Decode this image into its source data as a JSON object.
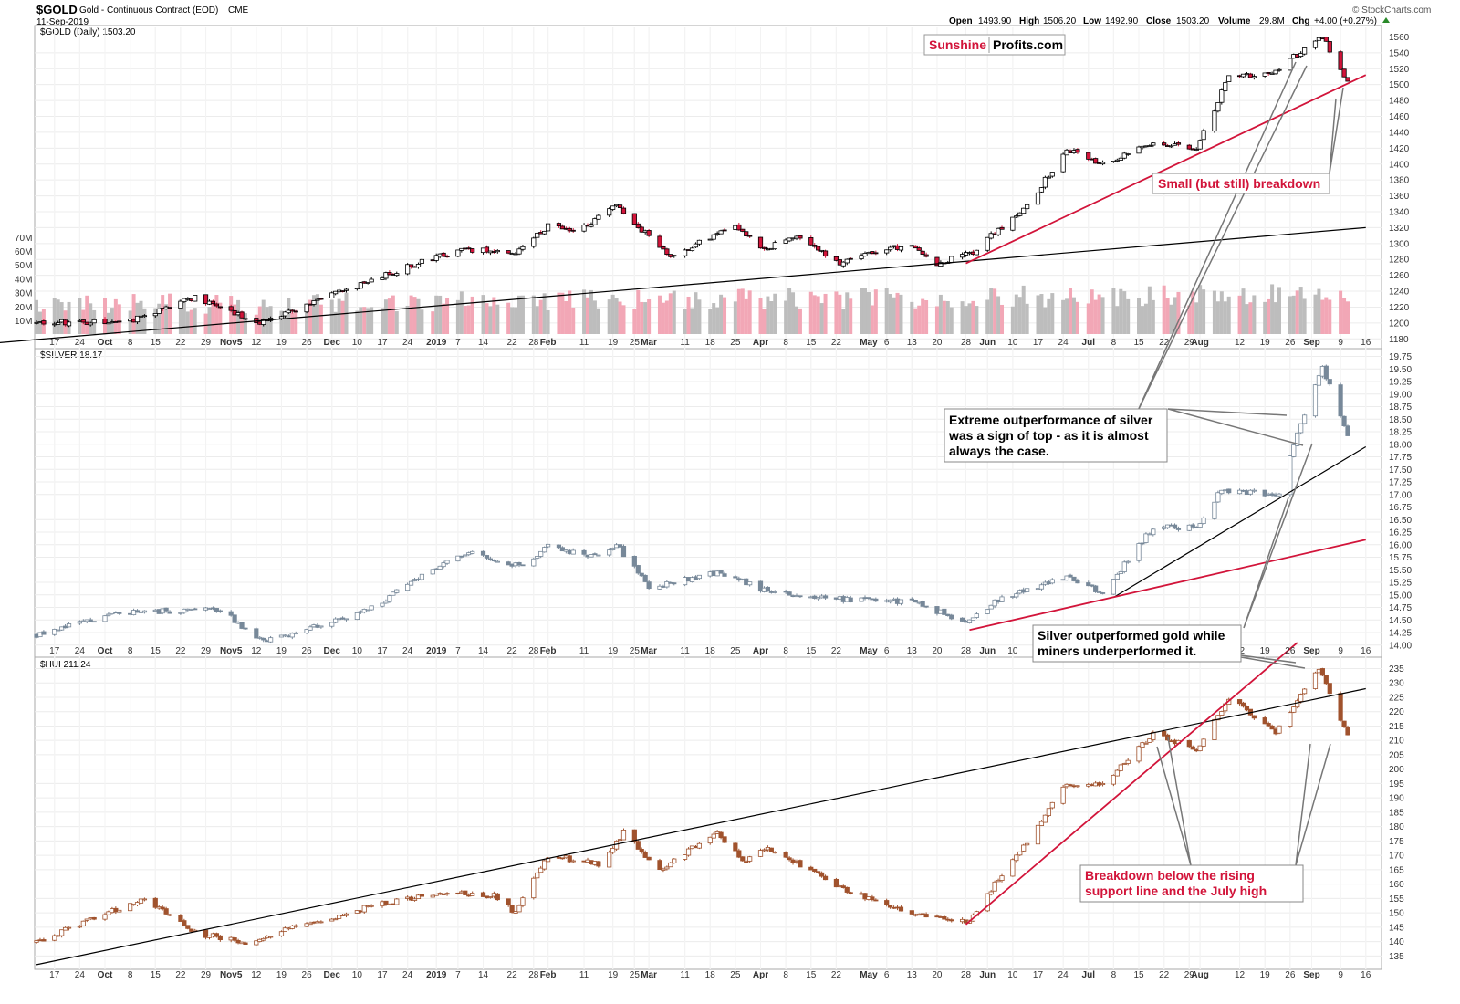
{
  "header": {
    "ticker": "$GOLD",
    "description": "Gold - Continuous Contract (EOD)",
    "exchange": "CME",
    "date": "11-Sep-2019",
    "open_label": "Open",
    "open": "1493.90",
    "high_label": "High",
    "high": "1506.20",
    "low_label": "Low",
    "low": "1492.90",
    "close_label": "Close",
    "close": "1503.20",
    "volume_label": "Volume",
    "volume": "29.8M",
    "chg_label": "Chg",
    "chg": "+4.00 (+0.27%)",
    "watermark": "© StockCharts.com"
  },
  "logo": {
    "part1": "Sunshine",
    "part2": "Profits.com"
  },
  "colors": {
    "up": "#ffffff",
    "down": "#d2143a",
    "gold_frame": "#000000",
    "silver": "#778899",
    "hui": "#a0522d",
    "red_line": "#d2143a"
  },
  "annotations": {
    "gold_breakdown": "Small (but still) breakdown",
    "silver_top": [
      "Extreme outperformance of silver",
      "was a sign of top - as it is almost",
      "always the case."
    ],
    "silver_vs_miners": [
      "Silver outperformed gold while",
      "miners underperformed it."
    ],
    "hui_breakdown": [
      "Breakdown below the rising",
      "support line and the July high"
    ]
  },
  "chart_data": [
    {
      "type": "candlestick",
      "title": "$GOLD (Daily) 1503.20",
      "yticks": [
        1180,
        1200,
        1220,
        1240,
        1260,
        1280,
        1300,
        1320,
        1340,
        1360,
        1380,
        1400,
        1420,
        1440,
        1460,
        1480,
        1500,
        1520,
        1540,
        1560
      ],
      "ylim": [
        1170,
        1572
      ],
      "anchors": [
        [
          "2018-09-12",
          1200
        ],
        [
          "2018-10-08",
          1203
        ],
        [
          "2018-10-26",
          1233
        ],
        [
          "2018-11-13",
          1201
        ],
        [
          "2018-12-31",
          1282
        ],
        [
          "2019-01-08",
          1291
        ],
        [
          "2019-01-24",
          1290
        ],
        [
          "2019-02-01",
          1323
        ],
        [
          "2019-02-08",
          1314
        ],
        [
          "2019-02-20",
          1347
        ],
        [
          "2019-03-07",
          1285
        ],
        [
          "2019-03-25",
          1323
        ],
        [
          "2019-04-02",
          1293
        ],
        [
          "2019-04-10",
          1310
        ],
        [
          "2019-04-23",
          1276
        ],
        [
          "2019-05-13",
          1300
        ],
        [
          "2019-05-20",
          1275
        ],
        [
          "2019-05-30",
          1290
        ],
        [
          "2019-06-14",
          1348
        ],
        [
          "2019-06-25",
          1418
        ],
        [
          "2019-07-05",
          1400
        ],
        [
          "2019-07-19",
          1427
        ],
        [
          "2019-07-31",
          1420
        ],
        [
          "2019-08-09",
          1510
        ],
        [
          "2019-08-20",
          1513
        ],
        [
          "2019-09-04",
          1560
        ],
        [
          "2019-09-11",
          1503
        ]
      ],
      "volume_ticks": [
        "10M",
        "20M",
        "30M",
        "40M",
        "50M",
        "60M",
        "70M"
      ],
      "support_line": {
        "from": [
          "2018-09-01",
          1175
        ],
        "to": [
          "2019-09-16",
          1320
        ]
      },
      "red_line": {
        "from": [
          "2019-05-28",
          1275
        ],
        "to": [
          "2019-09-16",
          1512
        ]
      }
    },
    {
      "type": "candlestick",
      "title": "$SILVER 18.17",
      "yticks": [
        14.0,
        14.25,
        14.5,
        14.75,
        15.0,
        15.25,
        15.5,
        15.75,
        16.0,
        16.25,
        16.5,
        16.75,
        17.0,
        17.25,
        17.5,
        17.75,
        18.0,
        18.25,
        18.5,
        18.75,
        19.0,
        19.25,
        19.5,
        19.75
      ],
      "ylim": [
        13.85,
        19.85
      ],
      "anchors": [
        [
          "2018-09-12",
          14.2
        ],
        [
          "2018-10-04",
          14.65
        ],
        [
          "2018-11-02",
          14.7
        ],
        [
          "2018-11-14",
          14.05
        ],
        [
          "2018-12-13",
          14.7
        ],
        [
          "2018-12-31",
          15.5
        ],
        [
          "2019-01-09",
          15.85
        ],
        [
          "2019-01-25",
          15.55
        ],
        [
          "2019-02-01",
          16.0
        ],
        [
          "2019-02-12",
          15.75
        ],
        [
          "2019-02-20",
          16.0
        ],
        [
          "2019-03-01",
          15.15
        ],
        [
          "2019-03-20",
          15.45
        ],
        [
          "2019-04-02",
          15.1
        ],
        [
          "2019-04-25",
          14.9
        ],
        [
          "2019-05-14",
          14.85
        ],
        [
          "2019-05-28",
          14.45
        ],
        [
          "2019-06-07",
          14.95
        ],
        [
          "2019-06-25",
          15.35
        ],
        [
          "2019-07-05",
          15.05
        ],
        [
          "2019-07-19",
          16.35
        ],
        [
          "2019-07-31",
          16.35
        ],
        [
          "2019-08-07",
          17.1
        ],
        [
          "2019-08-23",
          17.0
        ],
        [
          "2019-08-28",
          18.25
        ],
        [
          "2019-09-04",
          19.55
        ],
        [
          "2019-09-11",
          18.17
        ]
      ],
      "support_line": {
        "from": [
          "2019-07-08",
          14.95
        ],
        "to": [
          "2019-09-16",
          17.95
        ]
      },
      "red_line": {
        "from": [
          "2019-05-29",
          14.3
        ],
        "to": [
          "2019-09-16",
          16.1
        ]
      }
    },
    {
      "type": "candlestick",
      "title": "$HUI 211.24",
      "yticks": [
        135,
        140,
        145,
        150,
        155,
        160,
        165,
        170,
        175,
        180,
        185,
        190,
        195,
        200,
        205,
        210,
        215,
        220,
        225,
        230,
        235
      ],
      "ylim": [
        131,
        238
      ],
      "anchors": [
        [
          "2018-09-12",
          140
        ],
        [
          "2018-10-12",
          155
        ],
        [
          "2018-10-26",
          143
        ],
        [
          "2018-11-09",
          140
        ],
        [
          "2018-12-13",
          152
        ],
        [
          "2018-12-31",
          157
        ],
        [
          "2019-01-17",
          156
        ],
        [
          "2019-01-23",
          150
        ],
        [
          "2019-02-01",
          170
        ],
        [
          "2019-02-15",
          167
        ],
        [
          "2019-02-22",
          178
        ],
        [
          "2019-03-04",
          165
        ],
        [
          "2019-03-20",
          178
        ],
        [
          "2019-03-27",
          168
        ],
        [
          "2019-04-03",
          173
        ],
        [
          "2019-04-24",
          158
        ],
        [
          "2019-05-14",
          150
        ],
        [
          "2019-05-29",
          147
        ],
        [
          "2019-06-05",
          160
        ],
        [
          "2019-06-17",
          180
        ],
        [
          "2019-06-25",
          195
        ],
        [
          "2019-07-05",
          195
        ],
        [
          "2019-07-19",
          212
        ],
        [
          "2019-07-31",
          207
        ],
        [
          "2019-08-09",
          225
        ],
        [
          "2019-08-22",
          213
        ],
        [
          "2019-09-03",
          235
        ],
        [
          "2019-09-11",
          211.24
        ]
      ],
      "support_line": {
        "from": [
          "2018-09-12",
          132
        ],
        "to": [
          "2019-09-16",
          228
        ]
      },
      "red_line": {
        "from": [
          "2019-05-28",
          146
        ],
        "to": [
          "2019-08-28",
          244
        ]
      }
    }
  ],
  "x_axis": {
    "labels": [
      {
        "date": "2018-09-17",
        "text": "17"
      },
      {
        "date": "2018-09-24",
        "text": "24"
      },
      {
        "date": "2018-10-01",
        "text": "Oct",
        "bold": true
      },
      {
        "date": "2018-10-08",
        "text": "8"
      },
      {
        "date": "2018-10-15",
        "text": "15"
      },
      {
        "date": "2018-10-22",
        "text": "22"
      },
      {
        "date": "2018-10-29",
        "text": "29"
      },
      {
        "date": "2018-11-05",
        "text": "Nov5",
        "bold": true
      },
      {
        "date": "2018-11-12",
        "text": "12"
      },
      {
        "date": "2018-11-19",
        "text": "19"
      },
      {
        "date": "2018-11-26",
        "text": "26"
      },
      {
        "date": "2018-12-03",
        "text": "Dec",
        "bold": true
      },
      {
        "date": "2018-12-10",
        "text": "10"
      },
      {
        "date": "2018-12-17",
        "text": "17"
      },
      {
        "date": "2018-12-24",
        "text": "24"
      },
      {
        "date": "2019-01-01",
        "text": "2019",
        "bold": true
      },
      {
        "date": "2019-01-07",
        "text": "7"
      },
      {
        "date": "2019-01-14",
        "text": "14"
      },
      {
        "date": "2019-01-22",
        "text": "22"
      },
      {
        "date": "2019-01-28",
        "text": "28"
      },
      {
        "date": "2019-02-01",
        "text": "Feb",
        "bold": true
      },
      {
        "date": "2019-02-11",
        "text": "11"
      },
      {
        "date": "2019-02-19",
        "text": "19"
      },
      {
        "date": "2019-02-25",
        "text": "25"
      },
      {
        "date": "2019-03-01",
        "text": "Mar",
        "bold": true
      },
      {
        "date": "2019-03-11",
        "text": "11"
      },
      {
        "date": "2019-03-18",
        "text": "18"
      },
      {
        "date": "2019-03-25",
        "text": "25"
      },
      {
        "date": "2019-04-01",
        "text": "Apr",
        "bold": true
      },
      {
        "date": "2019-04-08",
        "text": "8"
      },
      {
        "date": "2019-04-15",
        "text": "15"
      },
      {
        "date": "2019-04-22",
        "text": "22"
      },
      {
        "date": "2019-05-01",
        "text": "May",
        "bold": true
      },
      {
        "date": "2019-05-06",
        "text": "6"
      },
      {
        "date": "2019-05-13",
        "text": "13"
      },
      {
        "date": "2019-05-20",
        "text": "20"
      },
      {
        "date": "2019-05-28",
        "text": "28"
      },
      {
        "date": "2019-06-03",
        "text": "Jun",
        "bold": true
      },
      {
        "date": "2019-06-10",
        "text": "10"
      },
      {
        "date": "2019-06-17",
        "text": "17"
      },
      {
        "date": "2019-06-24",
        "text": "24"
      },
      {
        "date": "2019-07-01",
        "text": "Jul",
        "bold": true
      },
      {
        "date": "2019-07-08",
        "text": "8"
      },
      {
        "date": "2019-07-15",
        "text": "15"
      },
      {
        "date": "2019-07-22",
        "text": "22"
      },
      {
        "date": "2019-07-29",
        "text": "29"
      },
      {
        "date": "2019-08-01",
        "text": "Aug",
        "bold": true
      },
      {
        "date": "2019-08-12",
        "text": "12"
      },
      {
        "date": "2019-08-19",
        "text": "19"
      },
      {
        "date": "2019-08-26",
        "text": "26"
      },
      {
        "date": "2019-09-01",
        "text": "Sep",
        "bold": true
      },
      {
        "date": "2019-09-09",
        "text": "9"
      },
      {
        "date": "2019-09-16",
        "text": "16"
      }
    ]
  }
}
